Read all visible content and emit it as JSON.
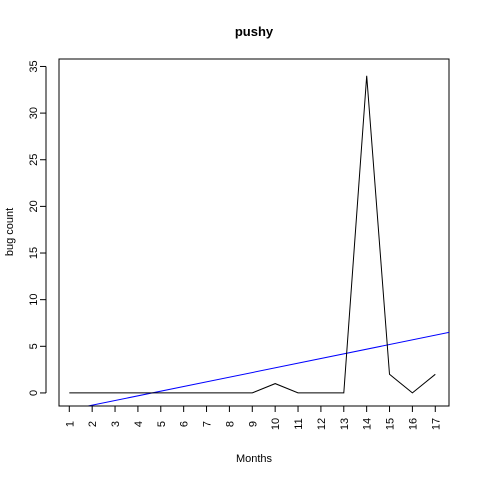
{
  "chart_data": {
    "type": "line",
    "title": "pushy",
    "xlabel": "Months",
    "ylabel": "bug count",
    "xlim": [
      0.55,
      17.6
    ],
    "ylim": [
      -1.4,
      35.8
    ],
    "x_ticks": [
      "1",
      "2",
      "3",
      "4",
      "5",
      "6",
      "7",
      "8",
      "9",
      "10",
      "11",
      "12",
      "13",
      "14",
      "15",
      "16",
      "17"
    ],
    "y_ticks": [
      0,
      5,
      10,
      15,
      20,
      25,
      30,
      35
    ],
    "grid": false,
    "series": [
      {
        "color": "#000000",
        "x": [
          1,
          2,
          3,
          4,
          5,
          6,
          7,
          8,
          9,
          10,
          11,
          12,
          13,
          14,
          15,
          16,
          17
        ],
        "values": [
          0,
          0,
          0,
          0,
          0,
          0,
          0,
          0,
          0,
          1,
          0,
          0,
          0,
          34,
          2,
          0,
          2
        ]
      }
    ],
    "trend_line": {
      "color": "#0000ff",
      "intercept": -2.31,
      "slope": 0.5
    }
  }
}
